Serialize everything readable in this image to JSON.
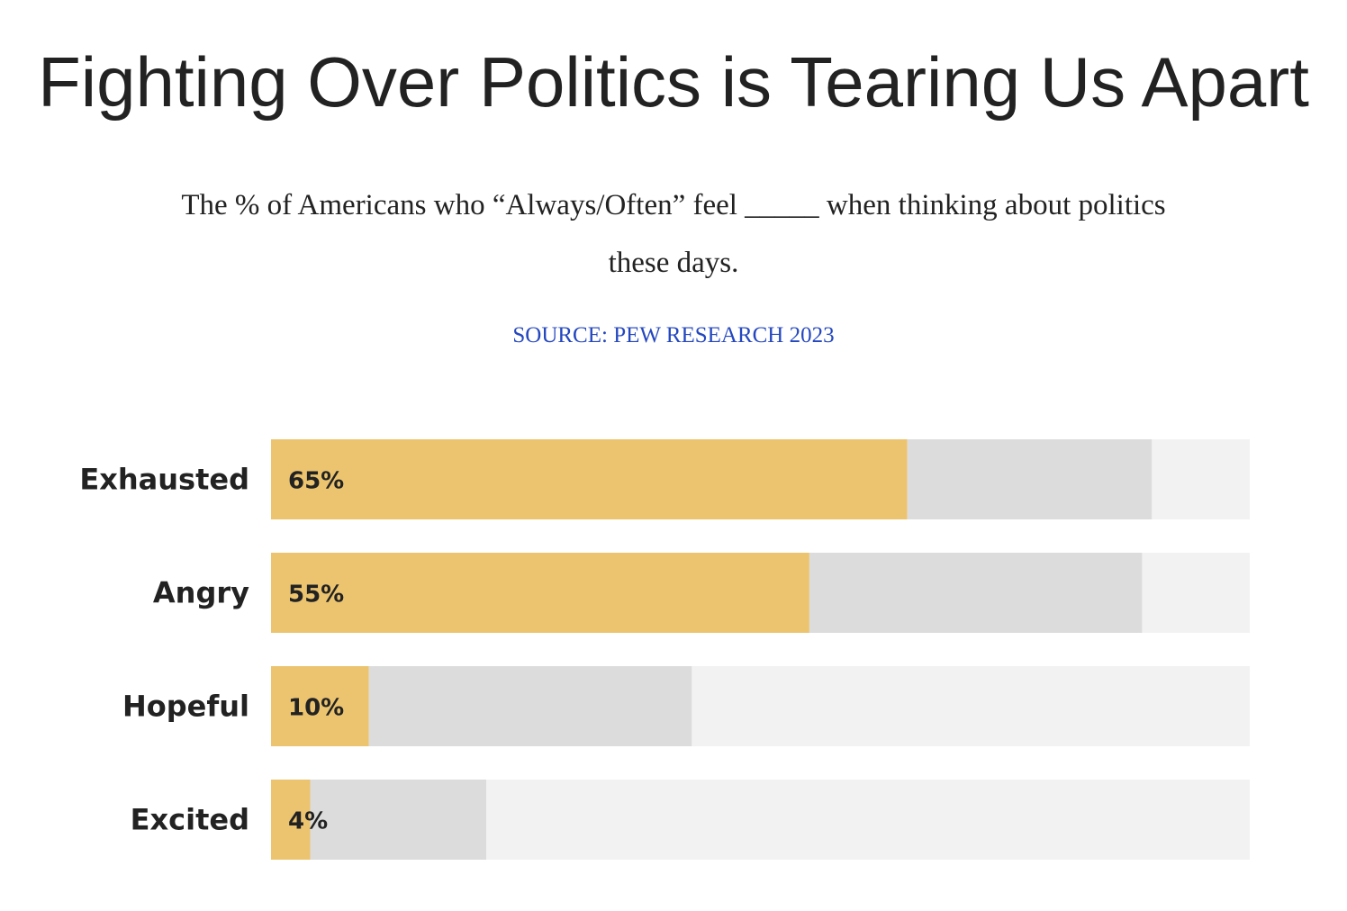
{
  "title": "Fighting Over Politics is Tearing Us Apart",
  "subtitle": "The % of Americans who “Always/Often” feel _____ when thinking about politics these days.",
  "source": "SOURCE: PEW RESEARCH 2023",
  "colors": {
    "always_often": "#ecc46f",
    "sometimes": "#dcdcdd",
    "remainder": "#f2f2f3",
    "label": "#222222"
  },
  "chart_data": {
    "type": "bar",
    "orientation": "horizontal",
    "stacked": true,
    "categories": [
      "Exhausted",
      "Angry",
      "Hopeful",
      "Excited"
    ],
    "series": [
      {
        "values": [
          65,
          55,
          10,
          4
        ]
      },
      {
        "values": [
          25,
          34,
          33,
          18
        ]
      },
      {
        "values": [
          10,
          11,
          57,
          78
        ]
      }
    ],
    "data_labels": [
      "65%",
      "55%",
      "10%",
      "4%"
    ],
    "xlim": [
      0,
      100
    ],
    "grid": false
  }
}
